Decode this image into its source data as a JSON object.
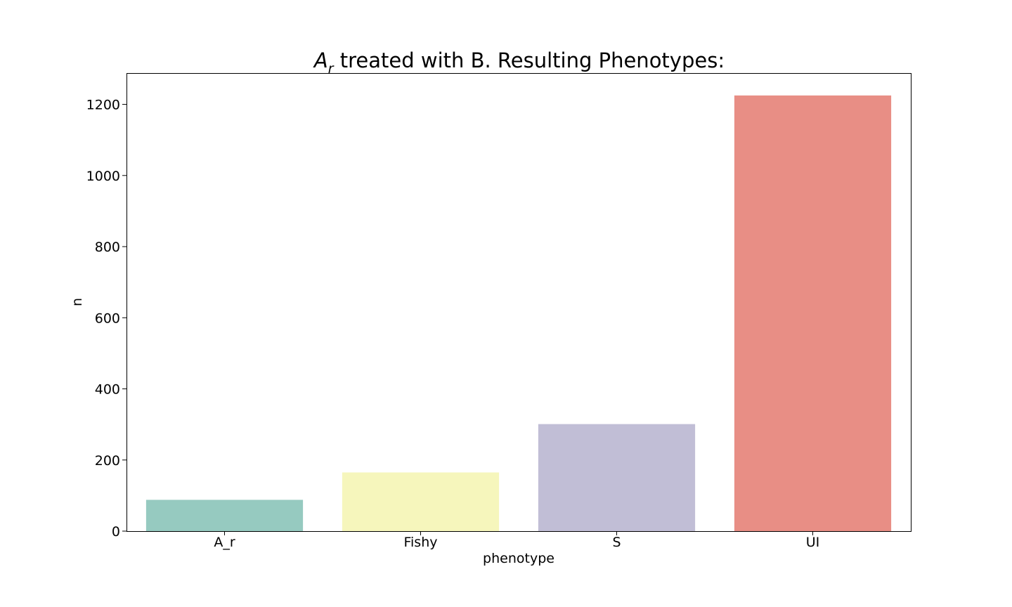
{
  "chart_data": {
    "type": "bar",
    "title_math_base": "A",
    "title_math_sub": "r",
    "title_rest": " treated with B. Resulting Phenotypes:",
    "xlabel": "phenotype",
    "ylabel": "n",
    "categories": [
      "A_r",
      "Fishy",
      "S",
      "UI"
    ],
    "values": [
      88,
      165,
      301,
      1225
    ],
    "colors": [
      "#96cac0",
      "#f6f6bc",
      "#c1bed6",
      "#e88e85"
    ],
    "ylim": [
      0,
      1288
    ],
    "yticks": [
      0,
      200,
      400,
      600,
      800,
      1000,
      1200
    ],
    "ytick_labels": [
      "0",
      "200",
      "400",
      "600",
      "800",
      "1000",
      "1200"
    ],
    "grid": false,
    "legend": "none"
  }
}
